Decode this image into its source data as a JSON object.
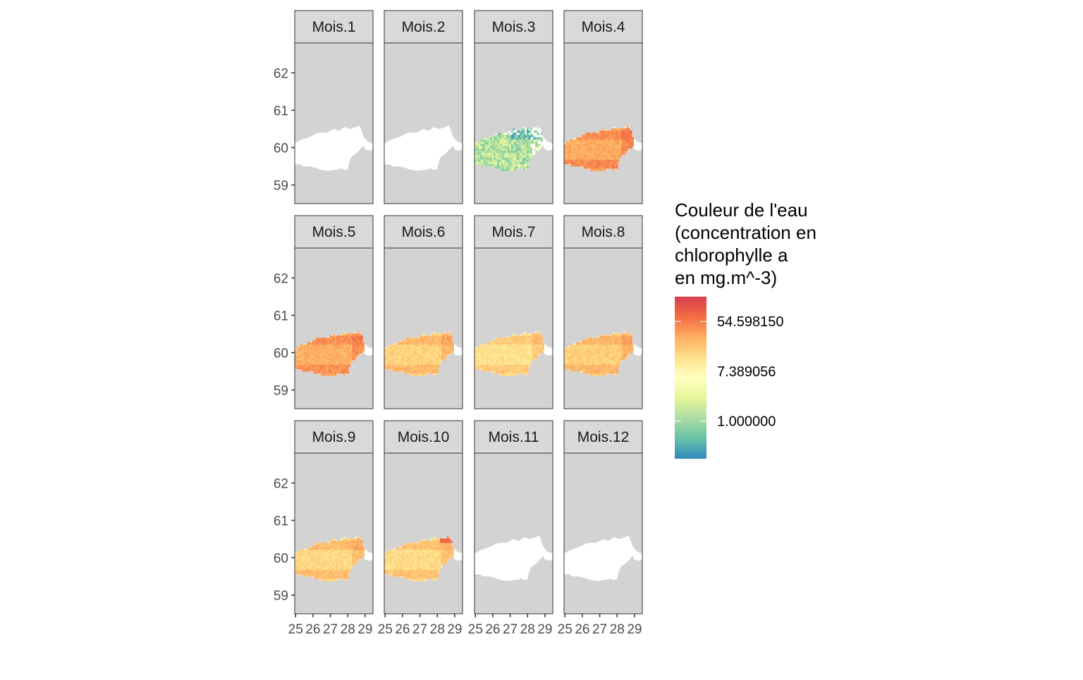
{
  "chart_data": {
    "type": "heatmap",
    "title": "",
    "xlabel": "",
    "ylabel": "",
    "xlim": [
      24.95,
      29.45
    ],
    "ylim": [
      58.5,
      62.8
    ],
    "x_ticks": [
      "25",
      "26",
      "27",
      "28",
      "29"
    ],
    "y_ticks": [
      "62",
      "61",
      "60",
      "59"
    ],
    "panels": [
      {
        "label": "Mois.1",
        "state": "empty"
      },
      {
        "label": "Mois.2",
        "state": "empty"
      },
      {
        "label": "Mois.3",
        "state": "sparse",
        "mean_value": 1.3
      },
      {
        "label": "Mois.4",
        "state": "full",
        "mean_value": 30
      },
      {
        "label": "Mois.5",
        "state": "full",
        "mean_value": 28
      },
      {
        "label": "Mois.6",
        "state": "full",
        "mean_value": 16
      },
      {
        "label": "Mois.7",
        "state": "full",
        "mean_value": 12
      },
      {
        "label": "Mois.8",
        "state": "full",
        "mean_value": 17
      },
      {
        "label": "Mois.9",
        "state": "full",
        "mean_value": 15
      },
      {
        "label": "Mois.10",
        "state": "full",
        "mean_value": 14
      },
      {
        "label": "Mois.11",
        "state": "empty"
      },
      {
        "label": "Mois.12",
        "state": "empty"
      }
    ],
    "legend": {
      "title_lines": [
        "Couleur de l'eau",
        "(concentration en",
        "chlorophylle a",
        "en mg.m^-3)"
      ],
      "breaks": [
        {
          "label": "54.598150",
          "value": 54.59815
        },
        {
          "label": "7.389056",
          "value": 7.389056
        },
        {
          "label": "1.000000",
          "value": 1.0
        }
      ],
      "scale": "log",
      "range": [
        0.22,
        148
      ],
      "colors": [
        "#3288bd",
        "#66c2a5",
        "#abdda4",
        "#e6f598",
        "#ffffbf",
        "#fee08b",
        "#fdae61",
        "#f46d43",
        "#d53e4f"
      ],
      "position": "right"
    },
    "panel_background": "#d3d3d3",
    "land_color": "#ffffff",
    "grid": false
  }
}
